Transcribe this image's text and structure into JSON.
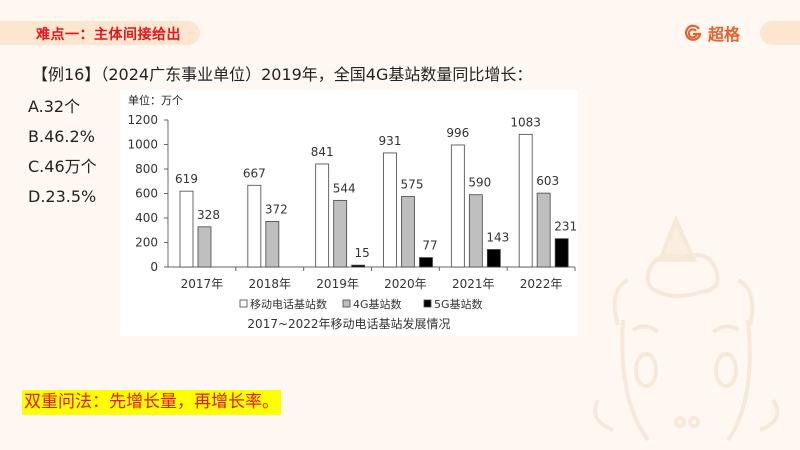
{
  "header": {
    "section_title": "难点一：主体间接给出",
    "brand_name": "超格",
    "brand_icon": "g-logo-icon"
  },
  "question": {
    "text": "【例16】（2024广东事业单位）2019年，全国4G基站数量同比增长：",
    "options": [
      {
        "key": "A",
        "label": "A.32个"
      },
      {
        "key": "B",
        "label": "B.46.2%"
      },
      {
        "key": "C",
        "label": "C.46万个"
      },
      {
        "key": "D",
        "label": "D.23.5%"
      }
    ]
  },
  "note": {
    "text": "双重问法：先增长量，再增长率。"
  },
  "chart_data": {
    "type": "bar",
    "title": "2017~2022年移动电话基站发展情况",
    "unit_label": "单位：万个",
    "xlabel": "",
    "ylabel": "万个",
    "ylim": [
      0,
      1200
    ],
    "yticks": [
      0,
      200,
      400,
      600,
      800,
      1000,
      1200
    ],
    "grid": false,
    "legend_position": "bottom",
    "categories": [
      "2017年",
      "2018年",
      "2019年",
      "2020年",
      "2021年",
      "2022年"
    ],
    "series": [
      {
        "name": "移动电话基站数",
        "color": "#ffffff",
        "values": [
          619,
          667,
          841,
          931,
          996,
          1083
        ]
      },
      {
        "name": "4G基站数",
        "color": "#bfbfbf",
        "values": [
          328,
          372,
          544,
          575,
          590,
          603
        ]
      },
      {
        "name": "5G基站数",
        "color": "#000000",
        "values": [
          null,
          null,
          15,
          77,
          143,
          231
        ]
      }
    ]
  }
}
